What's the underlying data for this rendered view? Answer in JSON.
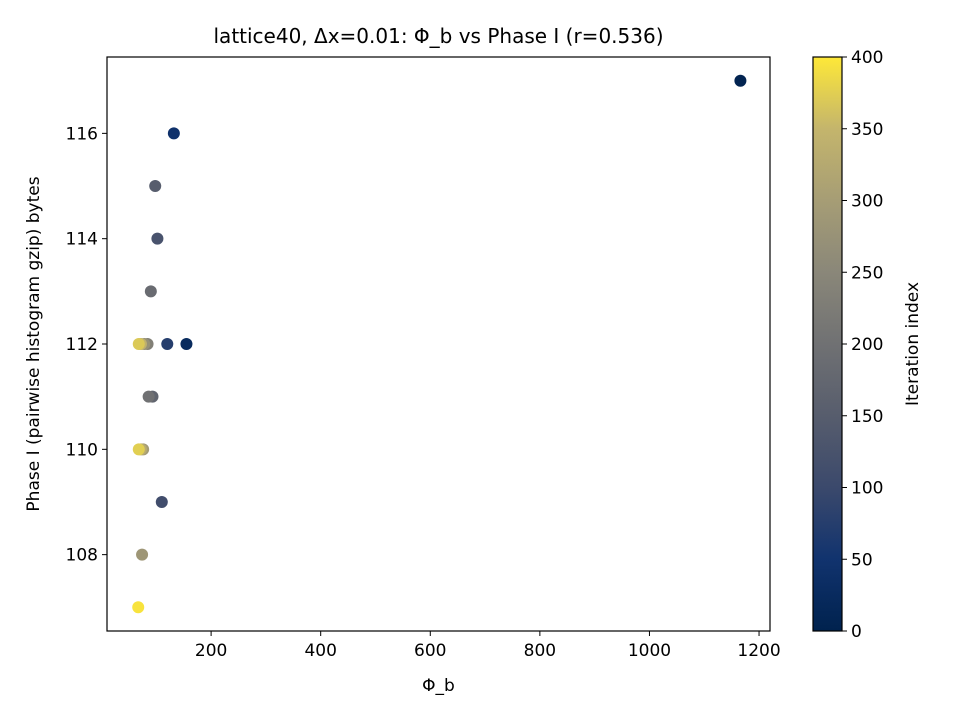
{
  "chart_data": {
    "type": "scatter",
    "title": "lattice40, Δx=0.01: Φ_b vs Phase I (r=0.536)",
    "xlabel": "Φ_b",
    "ylabel": "Phase I (pairwise histogram gzip) bytes",
    "xlim": [
      10,
      1220
    ],
    "ylim": [
      106.55,
      117.45
    ],
    "xticks": [
      200,
      400,
      600,
      800,
      1000,
      1200
    ],
    "yticks": [
      108,
      110,
      112,
      114,
      116
    ],
    "grid": false,
    "colormap": "cividis",
    "colorbar": {
      "label": "Iteration index",
      "range": [
        0,
        400
      ],
      "ticks": [
        0,
        50,
        100,
        150,
        200,
        250,
        300,
        350,
        400
      ]
    },
    "points": [
      {
        "x": 1166,
        "y": 117,
        "c": 5
      },
      {
        "x": 132,
        "y": 116,
        "c": 45
      },
      {
        "x": 155,
        "y": 112,
        "c": 25
      },
      {
        "x": 120,
        "y": 112,
        "c": 75
      },
      {
        "x": 98,
        "y": 115,
        "c": 150
      },
      {
        "x": 102,
        "y": 114,
        "c": 125
      },
      {
        "x": 90,
        "y": 113,
        "c": 185
      },
      {
        "x": 93,
        "y": 111,
        "c": 170
      },
      {
        "x": 86,
        "y": 111,
        "c": 200
      },
      {
        "x": 110,
        "y": 109,
        "c": 110
      },
      {
        "x": 84,
        "y": 112,
        "c": 235
      },
      {
        "x": 78,
        "y": 112,
        "c": 270
      },
      {
        "x": 72,
        "y": 112,
        "c": 340
      },
      {
        "x": 68,
        "y": 112,
        "c": 370
      },
      {
        "x": 76,
        "y": 110,
        "c": 295
      },
      {
        "x": 72,
        "y": 110,
        "c": 330
      },
      {
        "x": 68,
        "y": 110,
        "c": 375
      },
      {
        "x": 74,
        "y": 108,
        "c": 285
      },
      {
        "x": 67,
        "y": 107,
        "c": 395
      }
    ]
  }
}
